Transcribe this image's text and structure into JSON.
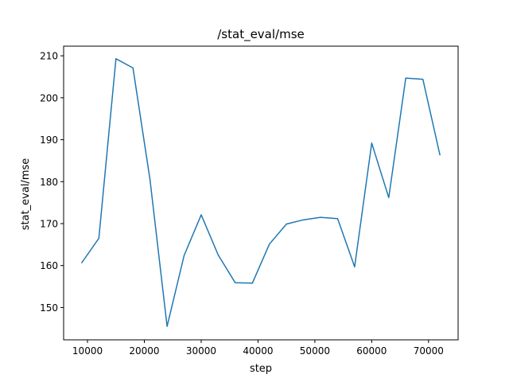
{
  "chart_data": {
    "type": "line",
    "title": "/stat_eval/mse",
    "xlabel": "step",
    "ylabel": "stat_eval/mse",
    "xlim": [
      5800,
      75200
    ],
    "ylim": [
      142.3,
      212.3
    ],
    "xticks": [
      10000,
      20000,
      30000,
      40000,
      50000,
      60000,
      70000
    ],
    "xtick_labels": [
      "10000",
      "20000",
      "30000",
      "40000",
      "50000",
      "60000",
      "70000"
    ],
    "yticks": [
      150,
      160,
      170,
      180,
      190,
      200,
      210
    ],
    "ytick_labels": [
      "150",
      "160",
      "170",
      "180",
      "190",
      "200",
      "210"
    ],
    "grid": false,
    "series": [
      {
        "color": "#1f77b4",
        "x": [
          9000,
          12000,
          15000,
          18000,
          21000,
          24000,
          27000,
          30000,
          33000,
          36000,
          39000,
          42000,
          45000,
          48000,
          51000,
          54000,
          57000,
          60000,
          63000,
          66000,
          69000,
          72000
        ],
        "y": [
          160.7,
          166.5,
          209.3,
          207.1,
          180.5,
          145.5,
          162.4,
          172.1,
          162.5,
          155.9,
          155.8,
          165.1,
          169.9,
          170.9,
          171.5,
          171.2,
          159.7,
          189.2,
          176.2,
          204.7,
          204.4,
          186.4
        ]
      }
    ]
  }
}
